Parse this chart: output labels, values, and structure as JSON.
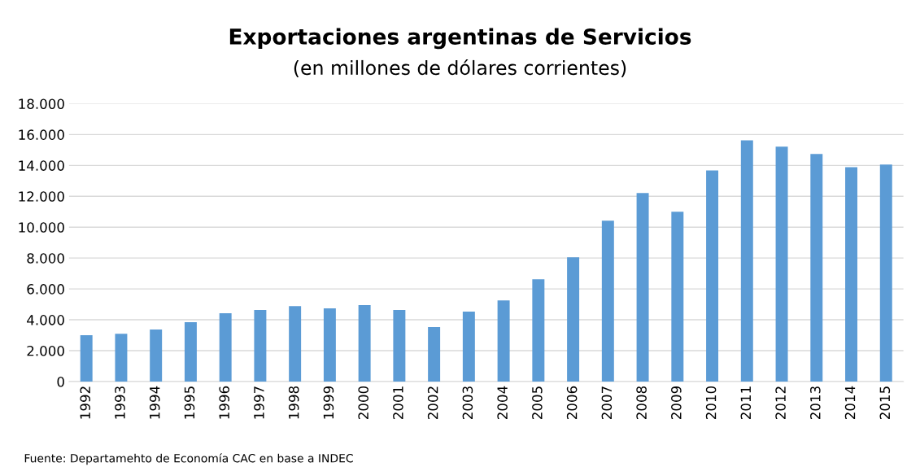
{
  "chart_data": {
    "type": "bar",
    "title": "Exportaciones argentinas de Servicios",
    "subtitle": "(en millones de dólares corrientes)",
    "categories": [
      "1992",
      "1993",
      "1994",
      "1995",
      "1996",
      "1997",
      "1998",
      "1999",
      "2000",
      "2001",
      "2002",
      "2003",
      "2004",
      "2005",
      "2006",
      "2007",
      "2008",
      "2009",
      "2010",
      "2011",
      "2012",
      "2013",
      "2014",
      "2015"
    ],
    "values": [
      3000,
      3100,
      3370,
      3840,
      4420,
      4630,
      4890,
      4740,
      4950,
      4630,
      3530,
      4530,
      5260,
      6630,
      8050,
      10420,
      12210,
      11000,
      13680,
      15630,
      15210,
      14740,
      13890,
      14050
    ],
    "color": "#5b9bd5",
    "ylim": [
      0,
      18000
    ],
    "yticks": [
      {
        "value": 0,
        "label": "0"
      },
      {
        "value": 2000,
        "label": "2.000"
      },
      {
        "value": 4000,
        "label": "4.000"
      },
      {
        "value": 6000,
        "label": "6.000"
      },
      {
        "value": 8000,
        "label": "8.000"
      },
      {
        "value": 10000,
        "label": "10.000"
      },
      {
        "value": 12000,
        "label": "12.000"
      },
      {
        "value": 14000,
        "label": "14.000"
      },
      {
        "value": 16000,
        "label": "16.000"
      },
      {
        "value": 18000,
        "label": "18.000"
      }
    ],
    "grid": "y",
    "legend": false,
    "annotations": [
      "Fuente: Departamehto de Economía CAC en base a INDEC"
    ]
  }
}
